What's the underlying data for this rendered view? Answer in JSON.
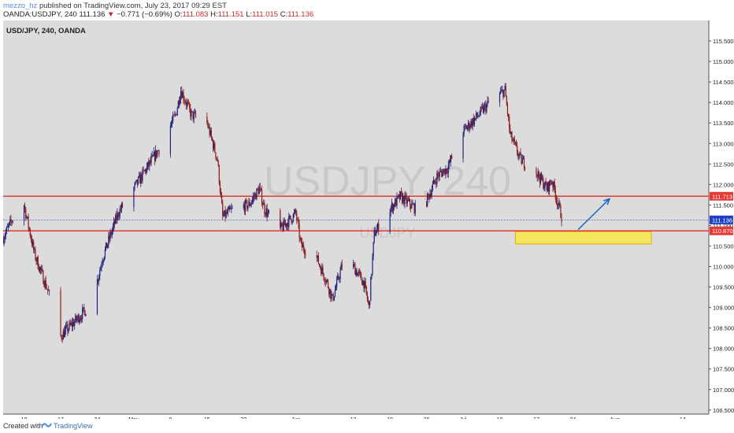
{
  "header": {
    "author": "mezzo_hz",
    "published_text": "published on TradingView.com, July 23, 2017 09:29 EST",
    "symbol_line": "OANDA:USDJPY, 240",
    "last_price": "111.136",
    "change_arrow": "▼",
    "change": "−0.771 (−0.69%)",
    "o_label": "O:",
    "o_value": "111.083",
    "h_label": "H:",
    "h_value": "111.151",
    "l_label": "L:",
    "l_value": "111.015",
    "c_label": "C:",
    "c_value": "111.136"
  },
  "chart_label": "USD/JPY, 240, OANDA",
  "watermark": {
    "symbol": "USDJPY, 240",
    "sub": "USDJPY"
  },
  "footer": {
    "created_with": "Created with",
    "brand": "TradingView"
  },
  "colors": {
    "plot_bg": "#dcdcdc",
    "candle_up": "#1a237e",
    "candle_down": "#8b1a1a",
    "resistance_line": "#e53935",
    "current_price": "#1e40c8",
    "zone_fill": "#ffeb3b",
    "arrow": "#1565c0"
  },
  "chart_data": {
    "type": "candlestick",
    "title": "USD/JPY, 240, OANDA",
    "y_ticks": [
      "106.500",
      "107.000",
      "107.500",
      "108.000",
      "108.500",
      "109.000",
      "109.500",
      "110.000",
      "110.500",
      "111.000",
      "111.500",
      "112.000",
      "112.500",
      "113.000",
      "113.500",
      "114.000",
      "114.500",
      "115.000",
      "115.500"
    ],
    "ylim": [
      106.4,
      116.0
    ],
    "x_ticks": [
      "10",
      "17",
      "24",
      "May",
      "8",
      "15",
      "22",
      "Jun",
      "12",
      "19",
      "26",
      "Jul",
      "10",
      "17",
      "24",
      "Aug",
      "14"
    ],
    "x_range": [
      "2017-04-06",
      "2017-08-19"
    ],
    "price_path": [
      {
        "date": "2017-04-06",
        "price": 110.7
      },
      {
        "date": "2017-04-08",
        "price": 111.2
      },
      {
        "date": "2017-04-10",
        "price": 111.5
      },
      {
        "date": "2017-04-12",
        "price": 110.3
      },
      {
        "date": "2017-04-14",
        "price": 109.6
      },
      {
        "date": "2017-04-16",
        "price": 108.9
      },
      {
        "date": "2017-04-17",
        "price": 108.3
      },
      {
        "date": "2017-04-20",
        "price": 108.7
      },
      {
        "date": "2017-04-23",
        "price": 109.1
      },
      {
        "date": "2017-04-25",
        "price": 110.2
      },
      {
        "date": "2017-04-28",
        "price": 111.3
      },
      {
        "date": "2017-05-03",
        "price": 112.3
      },
      {
        "date": "2017-05-06",
        "price": 112.9
      },
      {
        "date": "2017-05-09",
        "price": 113.7
      },
      {
        "date": "2017-05-10",
        "price": 114.3
      },
      {
        "date": "2017-05-12",
        "price": 113.7
      },
      {
        "date": "2017-05-15",
        "price": 113.5
      },
      {
        "date": "2017-05-17",
        "price": 112.6
      },
      {
        "date": "2017-05-18",
        "price": 111.2
      },
      {
        "date": "2017-05-20",
        "price": 111.4
      },
      {
        "date": "2017-05-23",
        "price": 111.5
      },
      {
        "date": "2017-05-25",
        "price": 111.9
      },
      {
        "date": "2017-05-26",
        "price": 111.4
      },
      {
        "date": "2017-05-29",
        "price": 110.9
      },
      {
        "date": "2017-06-01",
        "price": 111.3
      },
      {
        "date": "2017-06-02",
        "price": 110.5
      },
      {
        "date": "2017-06-05",
        "price": 110.2
      },
      {
        "date": "2017-06-07",
        "price": 109.6
      },
      {
        "date": "2017-06-08",
        "price": 109.2
      },
      {
        "date": "2017-06-10",
        "price": 110.1
      },
      {
        "date": "2017-06-12",
        "price": 110.0
      },
      {
        "date": "2017-06-14",
        "price": 109.6
      },
      {
        "date": "2017-06-15",
        "price": 109.0
      },
      {
        "date": "2017-06-16",
        "price": 110.8
      },
      {
        "date": "2017-06-19",
        "price": 111.4
      },
      {
        "date": "2017-06-21",
        "price": 111.7
      },
      {
        "date": "2017-06-25",
        "price": 111.3
      },
      {
        "date": "2017-06-28",
        "price": 112.2
      },
      {
        "date": "2017-06-30",
        "price": 112.4
      },
      {
        "date": "2017-07-03",
        "price": 113.3
      },
      {
        "date": "2017-07-06",
        "price": 113.7
      },
      {
        "date": "2017-07-08",
        "price": 114.0
      },
      {
        "date": "2017-07-11",
        "price": 114.3
      },
      {
        "date": "2017-07-12",
        "price": 113.2
      },
      {
        "date": "2017-07-14",
        "price": 112.6
      },
      {
        "date": "2017-07-17",
        "price": 112.3
      },
      {
        "date": "2017-07-19",
        "price": 111.9
      },
      {
        "date": "2017-07-20",
        "price": 112.1
      },
      {
        "date": "2017-07-21",
        "price": 111.6
      },
      {
        "date": "2017-07-22",
        "price": 111.14
      }
    ],
    "resistance_high": 111.713,
    "resistance_low": 110.87,
    "current_price": 111.136,
    "zone": {
      "x_from": "2017-07-13",
      "x_to": "2017-08-08",
      "y_from": 110.55,
      "y_to": 110.85
    },
    "arrow": {
      "x_from": "2017-07-25",
      "y_from": 110.9,
      "x_to": "2017-07-31",
      "y_to": 111.65
    },
    "price_labels": {
      "resistance_high": "111.713",
      "current": "111.136",
      "resistance_low": "110.870"
    },
    "grid": true
  }
}
